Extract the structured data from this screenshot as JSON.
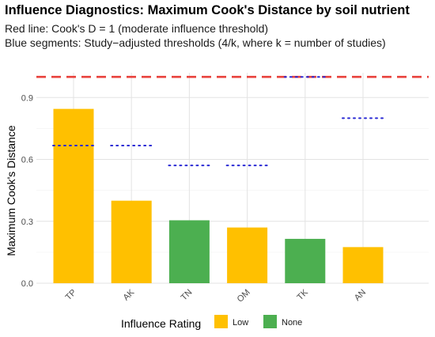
{
  "title": "Influence Diagnostics: Maximum Cook's Distance by soil nutrient",
  "subtitle_lines": [
    "Red line: Cook's D = 1 (moderate influence threshold)",
    "Blue segments: Study−adjusted thresholds (4/k, where k = number of studies)"
  ],
  "chart_data": {
    "type": "bar",
    "categories": [
      "TP",
      "AK",
      "TN",
      "OM",
      "TK",
      "AN"
    ],
    "values": [
      0.845,
      0.4,
      0.305,
      0.27,
      0.215,
      0.175
    ],
    "influence_rating": [
      "Low",
      "Low",
      "None",
      "Low",
      "None",
      "Low"
    ],
    "study_adjusted_thresholds": [
      0.667,
      0.667,
      0.571,
      0.571,
      1.0,
      0.8
    ],
    "reference_line": {
      "y": 1,
      "color": "#e8413c",
      "style": "dashed"
    },
    "ylabel": "Maximum Cook's Distance",
    "xlabel": "",
    "ylim": [
      0,
      1.02
    ],
    "yticks": [
      0.0,
      0.3,
      0.6,
      0.9
    ],
    "ytick_labels": [
      "0.0",
      "0.3",
      "0.6",
      "0.9"
    ],
    "grid": true,
    "legend": {
      "title": "Influence Rating",
      "position": "bottom",
      "entries": [
        {
          "label": "Low",
          "color": "#ffc000"
        },
        {
          "label": "None",
          "color": "#4caf50"
        }
      ]
    },
    "colors": {
      "Low": "#ffc000",
      "None": "#4caf50",
      "threshold_segment": "#2b2bd4"
    }
  }
}
